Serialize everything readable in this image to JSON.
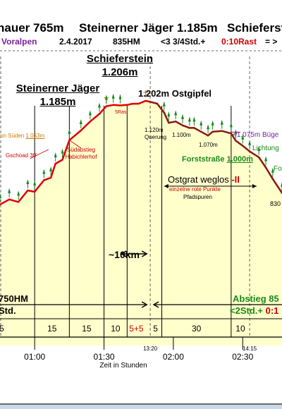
{
  "header": {
    "title_parts": [
      "nauer 765m",
      "Steinerner Jäger 1.185m",
      "Schieferst"
    ],
    "region": "Voralpen",
    "date": "2.4.2017",
    "elevation_gain": "835HM",
    "time_info": "<3 3/4Std.+",
    "rest_info": "0:10Rast",
    "rest_suffix": "= >"
  },
  "annotations": {
    "schieferstein_name": "Schieferstein",
    "schieferstein_height": "1.206m",
    "jaeger_name": "Steinerner Jäger",
    "jaeger_height": "1.185m",
    "ostgipfel": "1.202m Ostgipfel",
    "rast": "5Rast",
    "ridge_height": "1.120m",
    "ridge_name": "Querung",
    "point_1100": "1.100m",
    "point_1070": "1.070m",
    "buegel": "<1.075m Büge",
    "lichtung": "Lichtung",
    "forststrasse_label": "Forststraße",
    "forststrasse_height": "1.000m",
    "fo_cut": "Fo",
    "suden_label": "on Süden",
    "suden_height": "1.053m",
    "gschoad": "Gschoad 30'",
    "suedabstieg_1": "Südabstieg",
    "suedabstieg_2": "Habichlerhof",
    "ostgrat": "Ostgrat weglos",
    "ostgrat_mark": "-II",
    "red_points": "einzelne rote Punkte",
    "pfadspuren": "Pfadspuren",
    "height_830": "830",
    "distance": "~10km",
    "hm_left": "750HM",
    "std_left": "Std.",
    "abstieg": "Abstieg 85",
    "abstieg_time": "<2Std.+",
    "abstieg_rest": "0:1"
  },
  "chart_data": {
    "type": "line",
    "title": "",
    "xlabel": "Zeit in Stunden",
    "ylabel": "",
    "x_unit": "minutes",
    "x_range": [
      45,
      167
    ],
    "y_range": [
      580,
      1290
    ],
    "x_ticks": [
      {
        "x": 60,
        "label": "01:00"
      },
      {
        "x": 90,
        "label": "01:30"
      },
      {
        "x": 120,
        "label": "02:00"
      },
      {
        "x": 150,
        "label": "02:30"
      }
    ],
    "time_marks": [
      {
        "x": 110,
        "label": "13:20"
      },
      {
        "x": 153,
        "label": "14:15"
      }
    ],
    "segment_boundaries": [
      60,
      75,
      90,
      100,
      110,
      115,
      145,
      153
    ],
    "segment_labels": [
      {
        "x": 45.7,
        "text": "5",
        "color": "#000000"
      },
      {
        "x": 67.5,
        "text": "15",
        "color": "#000000"
      },
      {
        "x": 82.5,
        "text": "15",
        "color": "#000000"
      },
      {
        "x": 95,
        "text": "10",
        "color": "#000000"
      },
      {
        "x": 104,
        "text": "5+5",
        "color": "#cc0000"
      },
      {
        "x": 112.3,
        "text": "5",
        "color": "#000000"
      },
      {
        "x": 130,
        "text": "30",
        "color": "#000000"
      },
      {
        "x": 149,
        "text": "10",
        "color": "#000000"
      }
    ],
    "series": [
      {
        "values": [
          {
            "x": 45,
            "y": 800
          },
          {
            "x": 49,
            "y": 820
          },
          {
            "x": 53,
            "y": 810
          },
          {
            "x": 57,
            "y": 855
          },
          {
            "x": 60,
            "y": 850
          },
          {
            "x": 64,
            "y": 895
          },
          {
            "x": 67,
            "y": 905
          },
          {
            "x": 69,
            "y": 960
          },
          {
            "x": 72,
            "y": 975
          },
          {
            "x": 75,
            "y": 1052
          },
          {
            "x": 80,
            "y": 1090
          },
          {
            "x": 84,
            "y": 1125
          },
          {
            "x": 88,
            "y": 1155
          },
          {
            "x": 91,
            "y": 1185
          },
          {
            "x": 94,
            "y": 1190
          },
          {
            "x": 97,
            "y": 1188
          },
          {
            "x": 100,
            "y": 1190
          },
          {
            "x": 102,
            "y": 1194
          },
          {
            "x": 105,
            "y": 1195
          },
          {
            "x": 108,
            "y": 1206
          },
          {
            "x": 110,
            "y": 1202
          },
          {
            "x": 113,
            "y": 1195
          },
          {
            "x": 116,
            "y": 1160
          },
          {
            "x": 118,
            "y": 1120
          },
          {
            "x": 121,
            "y": 1125
          },
          {
            "x": 124,
            "y": 1110
          },
          {
            "x": 127,
            "y": 1100
          },
          {
            "x": 129,
            "y": 1100
          },
          {
            "x": 132,
            "y": 1085
          },
          {
            "x": 135,
            "y": 1070
          },
          {
            "x": 137,
            "y": 1085
          },
          {
            "x": 141,
            "y": 1088
          },
          {
            "x": 145,
            "y": 1078
          },
          {
            "x": 147,
            "y": 1050
          },
          {
            "x": 150,
            "y": 1030
          },
          {
            "x": 153,
            "y": 1008
          },
          {
            "x": 157,
            "y": 985
          },
          {
            "x": 160,
            "y": 945
          },
          {
            "x": 163,
            "y": 900
          },
          {
            "x": 167,
            "y": 845
          }
        ]
      }
    ],
    "colors": {
      "line_up": "#dd0000",
      "line_down": "#8a1a0a",
      "fill": "#ffffcc",
      "grid": "#000000",
      "dashed": "#666666",
      "tree": "#1a8a1a"
    }
  }
}
